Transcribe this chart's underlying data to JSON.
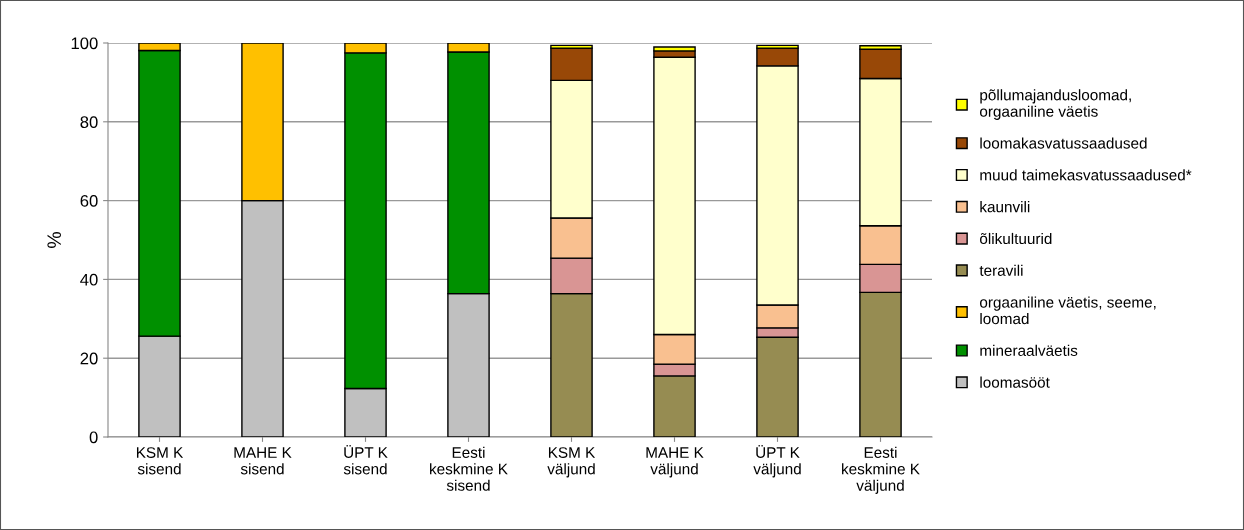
{
  "chart_data": {
    "type": "bar",
    "stacked": true,
    "ylabel": "%",
    "categories": [
      "KSM K\nsisend",
      "MAHE K\nsisend",
      "ÜPT K\nsisend",
      "Eesti\nkeskmine K\nsisend",
      "KSM K\nväljund",
      "MAHE K\nväljund",
      "ÜPT K\nväljund",
      "Eesti\nkeskmine K\nväljund"
    ],
    "series": [
      {
        "name": "loomasööt",
        "color": "#c0c0c0",
        "values": [
          25.6,
          60.0,
          12.3,
          36.4,
          null,
          null,
          null,
          null
        ]
      },
      {
        "name": "mineraalväetis",
        "color": "#009000",
        "values": [
          72.5,
          null,
          85.2,
          61.3,
          null,
          null,
          null,
          null
        ]
      },
      {
        "name": "orgaaniline väetis, seeme,\nloomad",
        "color": "#ffc000",
        "values": [
          1.9,
          40.0,
          2.5,
          2.3,
          null,
          null,
          null,
          null
        ]
      },
      {
        "name": "teravili",
        "color": "#968c52",
        "values": [
          null,
          null,
          null,
          null,
          36.4,
          15.5,
          25.3,
          36.7
        ]
      },
      {
        "name": "õlikultuurid",
        "color": "#d99594",
        "values": [
          null,
          null,
          null,
          null,
          9.0,
          3.0,
          2.4,
          7.1
        ]
      },
      {
        "name": "kaunvili",
        "color": "#f9c090",
        "values": [
          null,
          null,
          null,
          null,
          10.2,
          7.5,
          5.8,
          9.8
        ]
      },
      {
        "name": "muud taimekasvatussaadused*",
        "color": "#ffffcc",
        "values": [
          null,
          null,
          null,
          null,
          34.9,
          70.4,
          60.7,
          37.4
        ]
      },
      {
        "name": "loomakasvatussaadused",
        "color": "#984807",
        "values": [
          null,
          null,
          null,
          null,
          8.2,
          1.6,
          4.5,
          7.4
        ]
      },
      {
        "name": "põllumajandusloomad,\norgaaniline väetis",
        "color": "#ffff00",
        "values": [
          null,
          null,
          null,
          null,
          0.7,
          1.0,
          0.7,
          0.9
        ]
      }
    ],
    "ylim": [
      0,
      100
    ],
    "yticks": [
      0,
      20,
      40,
      60,
      80,
      100
    ],
    "grid": "y",
    "legend": "right"
  }
}
